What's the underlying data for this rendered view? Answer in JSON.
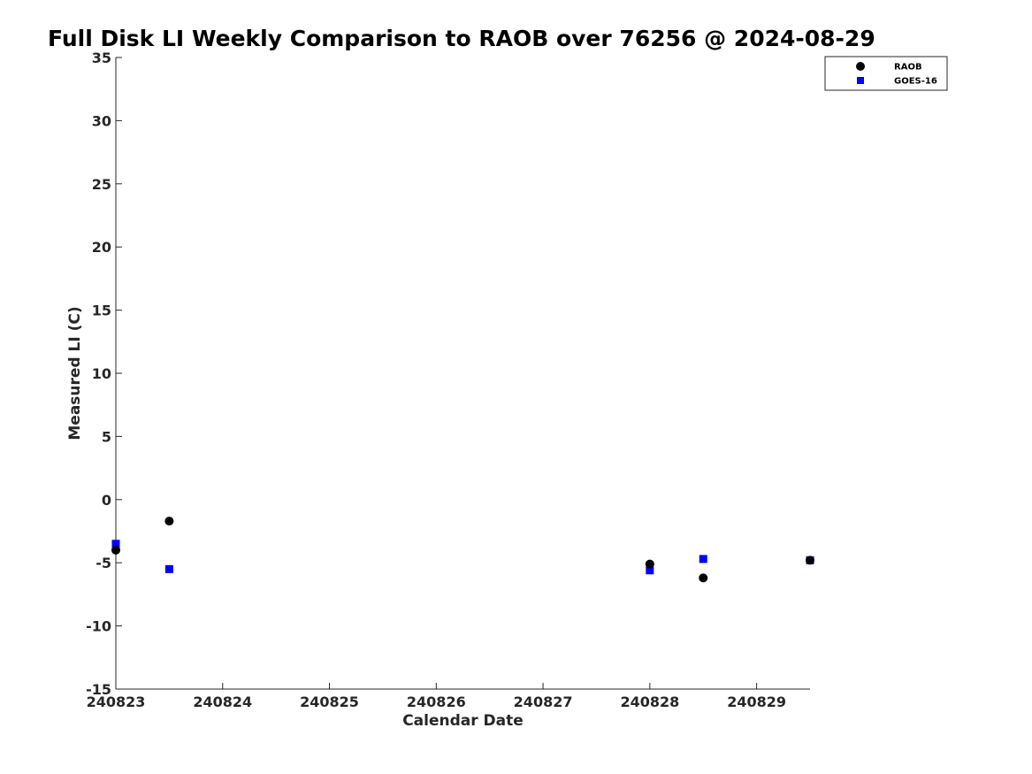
{
  "chart_data": {
    "type": "scatter",
    "title": "Full Disk LI Weekly Comparison to RAOB over 76256 @ 2024-08-29",
    "xlabel": "Calendar Date",
    "ylabel": "Measured LI (C)",
    "xlim": [
      240823,
      240829.5
    ],
    "ylim": [
      -15,
      35
    ],
    "x_ticks": [
      240823,
      240824,
      240825,
      240826,
      240827,
      240828,
      240829
    ],
    "x_tick_labels": [
      "240823",
      "240824",
      "240825",
      "240826",
      "240827",
      "240828",
      "240829"
    ],
    "y_ticks": [
      35,
      30,
      25,
      20,
      15,
      10,
      5,
      0,
      -5,
      -10,
      -15
    ],
    "y_tick_labels": [
      "35",
      "30",
      "25",
      "20",
      "15",
      "10",
      "5",
      "0",
      "-5",
      "-10",
      "-15"
    ],
    "grid": false,
    "legend_position": "top-right",
    "series": [
      {
        "name": "RAOB",
        "marker": "circle",
        "color": "#000000",
        "points": [
          {
            "x": 240823.0,
            "y": -4.0
          },
          {
            "x": 240823.5,
            "y": -1.7
          },
          {
            "x": 240828.0,
            "y": -5.1
          },
          {
            "x": 240828.5,
            "y": -6.2
          },
          {
            "x": 240829.5,
            "y": -4.8
          }
        ]
      },
      {
        "name": "GOES-16",
        "marker": "square",
        "color": "#0000ff",
        "points": [
          {
            "x": 240823.0,
            "y": -3.5
          },
          {
            "x": 240823.5,
            "y": -5.5
          },
          {
            "x": 240828.0,
            "y": -5.6
          },
          {
            "x": 240828.5,
            "y": -4.7
          },
          {
            "x": 240829.5,
            "y": -4.8
          }
        ]
      }
    ]
  }
}
